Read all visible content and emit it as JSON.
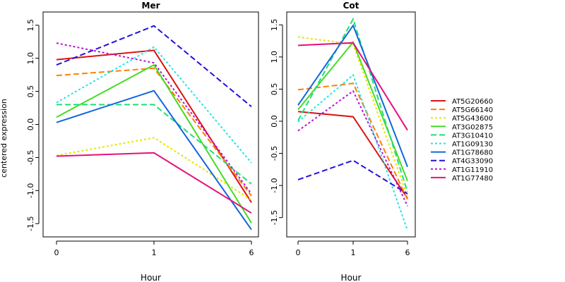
{
  "ylabel": "centered expression",
  "chart_data": [
    {
      "type": "line",
      "title": "Mer",
      "xlabel": "Hour",
      "x": [
        "0",
        "1",
        "6"
      ],
      "ylim": [
        -1.7,
        1.7
      ],
      "yticks": [
        "-1.5",
        "-1.0",
        "-0.5",
        "0.0",
        "0.5",
        "1.0",
        "1.5"
      ],
      "series": [
        {
          "name": "AT5G20660",
          "values": [
            0.98,
            1.12,
            -1.18
          ]
        },
        {
          "name": "AT5G66140",
          "values": [
            0.74,
            0.85,
            -1.08
          ]
        },
        {
          "name": "AT5G43600",
          "values": [
            -0.47,
            -0.2,
            -1.14
          ]
        },
        {
          "name": "AT3G02875",
          "values": [
            0.11,
            0.9,
            -1.49
          ]
        },
        {
          "name": "AT3G10410",
          "values": [
            0.3,
            0.3,
            -0.9
          ]
        },
        {
          "name": "AT1G09130",
          "values": [
            0.33,
            1.17,
            -0.58
          ]
        },
        {
          "name": "AT1G78680",
          "values": [
            0.03,
            0.51,
            -1.59
          ]
        },
        {
          "name": "AT4G33090",
          "values": [
            0.9,
            1.49,
            0.27
          ]
        },
        {
          "name": "AT1G11910",
          "values": [
            1.23,
            0.93,
            -1.05
          ]
        },
        {
          "name": "AT1G77480",
          "values": [
            -0.48,
            -0.43,
            -1.34
          ]
        }
      ]
    },
    {
      "type": "line",
      "title": "Cot",
      "xlabel": "Hour",
      "x": [
        "0",
        "1",
        "6"
      ],
      "ylim": [
        -1.8,
        1.7
      ],
      "yticks": [
        "-1.5",
        "-1.0",
        "-0.5",
        "0.0",
        "0.5",
        "1.0",
        "1.5"
      ],
      "series": [
        {
          "name": "AT5G20660",
          "values": [
            0.15,
            0.07,
            -1.2
          ]
        },
        {
          "name": "AT5G66140",
          "values": [
            0.49,
            0.59,
            -1.22
          ]
        },
        {
          "name": "AT5G43600",
          "values": [
            1.31,
            1.2,
            -1.17
          ]
        },
        {
          "name": "AT3G02875",
          "values": [
            0.18,
            1.23,
            -0.93
          ]
        },
        {
          "name": "AT3G10410",
          "values": [
            0.01,
            1.59,
            -1.1
          ]
        },
        {
          "name": "AT1G09130",
          "values": [
            -0.01,
            0.72,
            -1.7
          ]
        },
        {
          "name": "AT1G78680",
          "values": [
            0.25,
            1.49,
            -0.71
          ]
        },
        {
          "name": "AT4G33090",
          "values": [
            -0.91,
            -0.61,
            -1.13
          ]
        },
        {
          "name": "AT1G11910",
          "values": [
            -0.15,
            0.47,
            -1.32
          ]
        },
        {
          "name": "AT1G77480",
          "values": [
            1.18,
            1.22,
            -0.14
          ]
        }
      ]
    }
  ],
  "legend": {
    "placement": "right",
    "items": [
      {
        "name": "AT5G20660",
        "color": "#dd1111",
        "dash": "solid"
      },
      {
        "name": "AT5G66140",
        "color": "#ff8000",
        "dash": "dashed"
      },
      {
        "name": "AT5G43600",
        "color": "#e6e600",
        "dash": "dotted"
      },
      {
        "name": "AT3G02875",
        "color": "#44dd22",
        "dash": "solid"
      },
      {
        "name": "AT3G10410",
        "color": "#22dd77",
        "dash": "dashed"
      },
      {
        "name": "AT1G09130",
        "color": "#22e6e6",
        "dash": "dotted"
      },
      {
        "name": "AT1G78680",
        "color": "#1166dd",
        "dash": "solid"
      },
      {
        "name": "AT4G33090",
        "color": "#2211dd",
        "dash": "dashed"
      },
      {
        "name": "AT1G11910",
        "color": "#bb11dd",
        "dash": "dotted"
      },
      {
        "name": "AT1G77480",
        "color": "#e6117a",
        "dash": "solid"
      }
    ]
  }
}
